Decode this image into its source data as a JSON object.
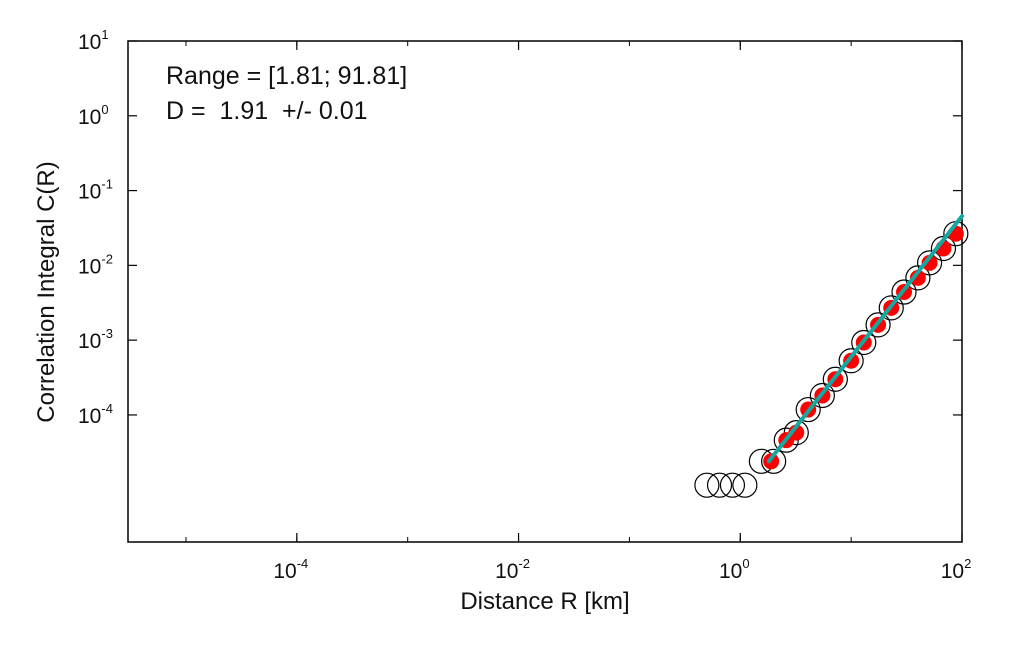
{
  "chart_data": {
    "type": "scatter",
    "xscale": "log",
    "yscale": "log",
    "xlim": [
      3e-06,
      100
    ],
    "ylim": [
      2e-06,
      10
    ],
    "xlabel": "Distance R [km]",
    "ylabel": "Correlation Integral C(R)",
    "x_ticks": [
      {
        "value": 0.0001,
        "base": "10",
        "exp": "-4"
      },
      {
        "value": 0.01,
        "base": "10",
        "exp": "-2"
      },
      {
        "value": 1,
        "base": "10",
        "exp": "0"
      },
      {
        "value": 100,
        "base": "10",
        "exp": "2"
      }
    ],
    "y_ticks": [
      {
        "value": 0.0001,
        "base": "10",
        "exp": "-4"
      },
      {
        "value": 0.001,
        "base": "10",
        "exp": "-3"
      },
      {
        "value": 0.01,
        "base": "10",
        "exp": "-2"
      },
      {
        "value": 0.1,
        "base": "10",
        "exp": "-1"
      },
      {
        "value": 1,
        "base": "10",
        "exp": "0"
      },
      {
        "value": 10,
        "base": "10",
        "exp": "1"
      }
    ],
    "annotations": [
      "Range = [1.81; 91.81]",
      "D =  1.91  +/- 0.01"
    ],
    "series": [
      {
        "marker": "open-circle",
        "color": "#000000",
        "points": [
          [
            0.5,
            1.15e-05
          ],
          [
            0.65,
            1.15e-05
          ],
          [
            0.85,
            1.15e-05
          ],
          [
            1.1,
            1.15e-05
          ],
          [
            1.55,
            2.4e-05
          ],
          [
            2.0,
            2.4e-05
          ],
          [
            2.6,
            4.6e-05
          ],
          [
            3.2,
            5.8e-05
          ],
          [
            4.1,
            0.000118
          ],
          [
            5.5,
            0.000182
          ],
          [
            7.2,
            0.0003
          ],
          [
            10.0,
            0.00053
          ],
          [
            13.0,
            0.00093
          ],
          [
            17.5,
            0.0016
          ],
          [
            23.0,
            0.0027
          ],
          [
            30.0,
            0.0044
          ],
          [
            40.0,
            0.0068
          ],
          [
            51.0,
            0.0108
          ],
          [
            68.0,
            0.0168
          ],
          [
            88.0,
            0.0265
          ]
        ]
      },
      {
        "marker": "filled-circle",
        "color": "#ff0000",
        "points": [
          [
            1.9,
            2.4e-05
          ],
          [
            2.6,
            4.6e-05
          ],
          [
            3.2,
            5.8e-05
          ],
          [
            4.1,
            0.000118
          ],
          [
            5.5,
            0.000182
          ],
          [
            7.2,
            0.0003
          ],
          [
            10.0,
            0.00053
          ],
          [
            13.0,
            0.00093
          ],
          [
            17.5,
            0.0016
          ],
          [
            23.0,
            0.0027
          ],
          [
            30.0,
            0.0044
          ],
          [
            40.0,
            0.0068
          ],
          [
            51.0,
            0.0108
          ],
          [
            68.0,
            0.0168
          ],
          [
            88.0,
            0.0265
          ]
        ]
      },
      {
        "type": "line",
        "color": "#12a8a0",
        "points": [
          [
            1.81,
            2.4e-05
          ],
          [
            100,
            0.0455
          ]
        ]
      }
    ]
  }
}
